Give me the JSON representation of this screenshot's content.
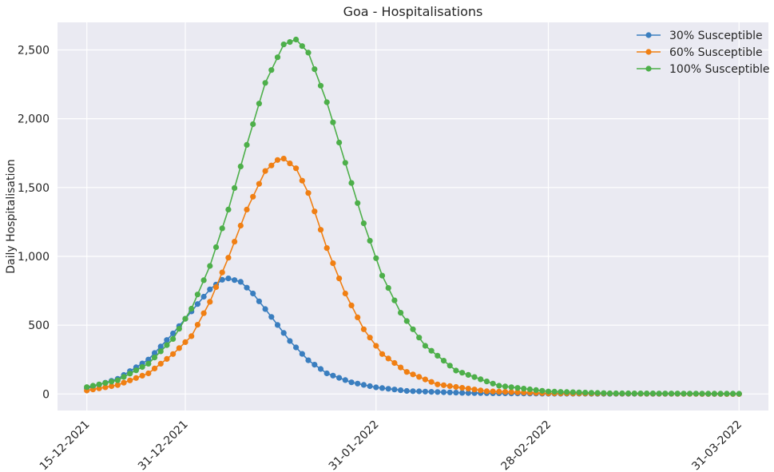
{
  "chart_data": {
    "type": "line",
    "title": "Goa - Hospitalisations",
    "xlabel": "",
    "ylabel": "Daily Hospitalisation",
    "x_start": "15-12-2021",
    "x_end": "31-03-2022",
    "x_ticks": [
      "15-12-2021",
      "31-12-2021",
      "31-01-2022",
      "28-02-2022",
      "31-03-2022"
    ],
    "ylim": [
      -120,
      2700
    ],
    "y_ticks": [
      "0",
      "500",
      "1,000",
      "1,500",
      "2,000",
      "2,500"
    ],
    "legend_position": "top-right",
    "grid": true,
    "series": [
      {
        "name": "30% Susceptible",
        "color": "#3a7ebf",
        "points": [
          [
            "15-12-2021",
            40
          ],
          [
            "20-12-2021",
            110
          ],
          [
            "25-12-2021",
            250
          ],
          [
            "29-12-2021",
            440
          ],
          [
            "01-01-2022",
            600
          ],
          [
            "04-01-2022",
            760
          ],
          [
            "06-01-2022",
            830
          ],
          [
            "07-01-2022",
            840
          ],
          [
            "09-01-2022",
            815
          ],
          [
            "11-01-2022",
            730
          ],
          [
            "14-01-2022",
            560
          ],
          [
            "17-01-2022",
            385
          ],
          [
            "20-01-2022",
            245
          ],
          [
            "23-01-2022",
            150
          ],
          [
            "27-01-2022",
            85
          ],
          [
            "31-01-2022",
            48
          ],
          [
            "05-02-2022",
            22
          ],
          [
            "15-02-2022",
            7
          ],
          [
            "28-02-2022",
            2
          ],
          [
            "31-03-2022",
            0
          ]
        ]
      },
      {
        "name": "60% Susceptible",
        "color": "#f07f13",
        "points": [
          [
            "15-12-2021",
            25
          ],
          [
            "20-12-2021",
            65
          ],
          [
            "25-12-2021",
            150
          ],
          [
            "29-12-2021",
            290
          ],
          [
            "01-01-2022",
            420
          ],
          [
            "04-01-2022",
            670
          ],
          [
            "07-01-2022",
            990
          ],
          [
            "10-01-2022",
            1340
          ],
          [
            "13-01-2022",
            1620
          ],
          [
            "15-01-2022",
            1700
          ],
          [
            "16-01-2022",
            1710
          ],
          [
            "18-01-2022",
            1640
          ],
          [
            "20-01-2022",
            1460
          ],
          [
            "23-01-2022",
            1060
          ],
          [
            "26-01-2022",
            730
          ],
          [
            "29-01-2022",
            470
          ],
          [
            "01-02-2022",
            290
          ],
          [
            "05-02-2022",
            160
          ],
          [
            "10-02-2022",
            70
          ],
          [
            "18-02-2022",
            20
          ],
          [
            "28-02-2022",
            5
          ],
          [
            "31-03-2022",
            0
          ]
        ]
      },
      {
        "name": "100% Susceptible",
        "color": "#4daf4a",
        "points": [
          [
            "15-12-2021",
            50
          ],
          [
            "20-12-2021",
            100
          ],
          [
            "25-12-2021",
            220
          ],
          [
            "29-12-2021",
            400
          ],
          [
            "01-01-2022",
            620
          ],
          [
            "04-01-2022",
            930
          ],
          [
            "07-01-2022",
            1340
          ],
          [
            "10-01-2022",
            1810
          ],
          [
            "13-01-2022",
            2260
          ],
          [
            "16-01-2022",
            2540
          ],
          [
            "18-01-2022",
            2575
          ],
          [
            "20-01-2022",
            2480
          ],
          [
            "23-01-2022",
            2120
          ],
          [
            "26-01-2022",
            1680
          ],
          [
            "29-01-2022",
            1240
          ],
          [
            "01-02-2022",
            860
          ],
          [
            "04-02-2022",
            590
          ],
          [
            "08-02-2022",
            350
          ],
          [
            "13-02-2022",
            170
          ],
          [
            "20-02-2022",
            60
          ],
          [
            "28-02-2022",
            18
          ],
          [
            "10-03-2022",
            5
          ],
          [
            "31-03-2022",
            2
          ]
        ]
      }
    ]
  }
}
